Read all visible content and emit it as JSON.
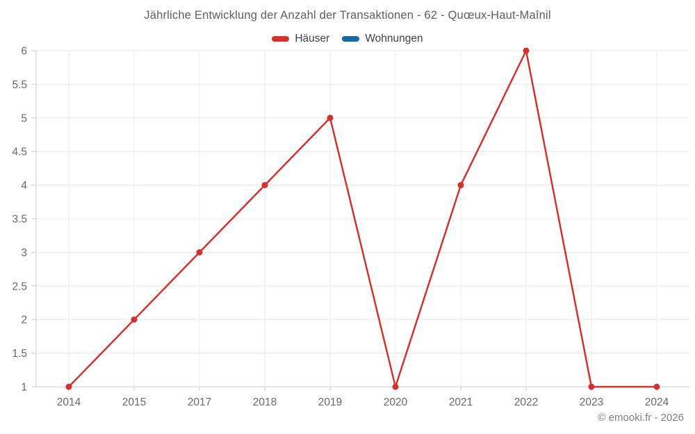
{
  "title": "Jährliche Entwicklung der Anzahl der Transaktionen - 62 - Quœux-Haut-Maînil",
  "legend": [
    {
      "label": "Häuser",
      "color": "#d5322e"
    },
    {
      "label": "Wohnungen",
      "color": "#1669a2"
    }
  ],
  "footer": "© emooki.fr - 2026",
  "colors": {
    "grid_horizontal": "#e8e8e8",
    "grid_vertical": "#ededed",
    "axis_line": "#c9cdd1",
    "tick_label": "#66696e"
  },
  "chart_data": {
    "type": "line",
    "title": "Jährliche Entwicklung der Anzahl der Transaktionen - 62 - Quœux-Haut-Maînil",
    "categories": [
      "2014",
      "2015",
      "2017",
      "2018",
      "2019",
      "2020",
      "2021",
      "2022",
      "2023",
      "2024"
    ],
    "series": [
      {
        "name": "Häuser",
        "color": "#d5322e",
        "values": [
          1,
          2,
          3,
          4,
          5,
          1,
          4,
          6,
          1,
          1
        ]
      },
      {
        "name": "Wohnungen",
        "color": "#1669a2",
        "values": []
      }
    ],
    "xlabel": "",
    "ylabel": "",
    "ylim": [
      1,
      6
    ],
    "yticks": [
      "1",
      "1.5",
      "2",
      "2.5",
      "3",
      "3.5",
      "4",
      "4.5",
      "5",
      "5.5",
      "6"
    ],
    "grid": true,
    "legend_position": "top"
  }
}
